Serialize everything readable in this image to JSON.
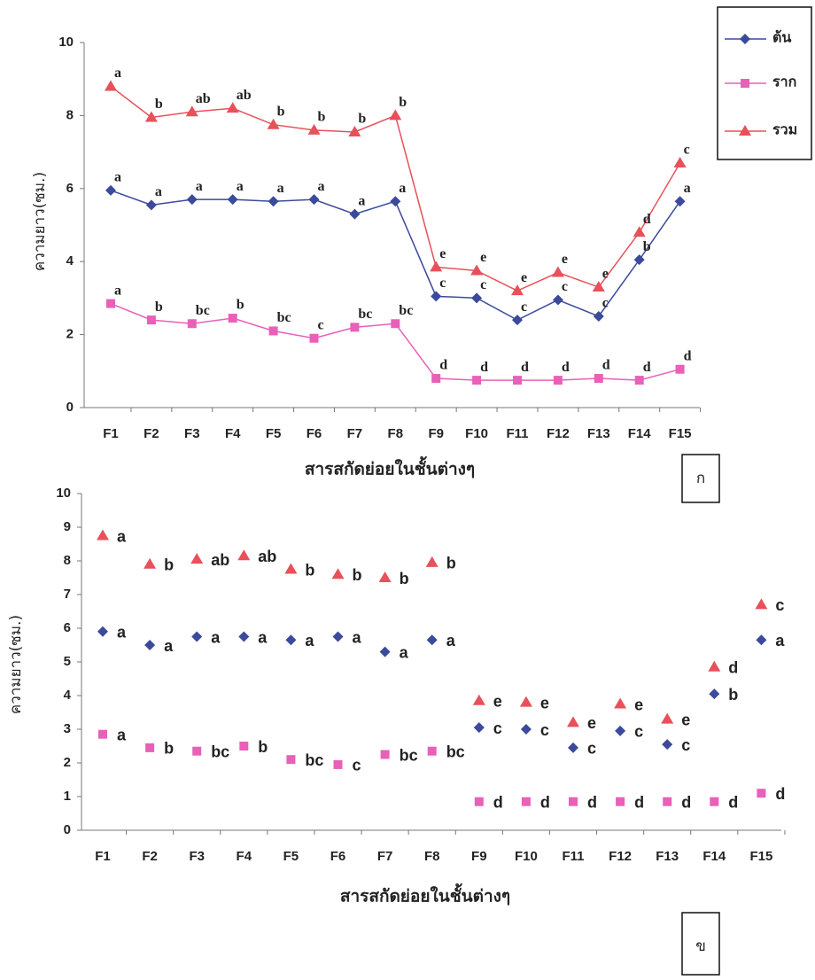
{
  "chart_data": [
    {
      "type": "line",
      "panel_label": "ก",
      "y_label": "ความยาว(ซม.)",
      "x_label": "สารสกัดย่อยในชั้นต่างๆ",
      "categories": [
        "F1",
        "F2",
        "F3",
        "F4",
        "F5",
        "F6",
        "F7",
        "F8",
        "F9",
        "F10",
        "F11",
        "F12",
        "F13",
        "F14",
        "F15"
      ],
      "ylim": [
        0,
        10
      ],
      "yticks": [
        0,
        2,
        4,
        6,
        8,
        10
      ],
      "legend": "top-right",
      "series": [
        {
          "name": "ต้น",
          "color": "#3b4a9a",
          "marker": "diamond",
          "values": [
            5.95,
            5.55,
            5.7,
            5.7,
            5.65,
            5.7,
            5.3,
            5.65,
            3.05,
            3.0,
            2.4,
            2.95,
            2.5,
            4.05,
            5.65
          ],
          "letters": [
            "a",
            "a",
            "a",
            "a",
            "a",
            "a",
            "a",
            "a",
            "c",
            "c",
            "c",
            "c",
            "c",
            "b",
            "a"
          ]
        },
        {
          "name": "ราก",
          "color": "#e860b8",
          "marker": "square",
          "values": [
            2.85,
            2.4,
            2.3,
            2.45,
            2.1,
            1.9,
            2.2,
            2.3,
            0.8,
            0.75,
            0.75,
            0.75,
            0.8,
            0.75,
            1.05
          ],
          "letters": [
            "a",
            "b",
            "bc",
            "b",
            "bc",
            "c",
            "bc",
            "bc",
            "d",
            "d",
            "d",
            "d",
            "d",
            "d",
            "d"
          ]
        },
        {
          "name": "รวม",
          "color": "#e8505a",
          "marker": "triangle",
          "values": [
            8.8,
            7.95,
            8.1,
            8.2,
            7.75,
            7.6,
            7.55,
            8.0,
            3.85,
            3.75,
            3.2,
            3.7,
            3.3,
            4.8,
            6.7
          ],
          "letters": [
            "a",
            "b",
            "ab",
            "ab",
            "b",
            "b",
            "b",
            "b",
            "e",
            "e",
            "e",
            "e",
            "e",
            "d",
            "c"
          ]
        }
      ]
    },
    {
      "type": "dot",
      "panel_label": "ข",
      "y_label": "ความยาว(ซม.)",
      "x_label": "สารสกัดย่อยในชั้นต่างๆ",
      "categories": [
        "F1",
        "F2",
        "F3",
        "F4",
        "F5",
        "F6",
        "F7",
        "F8",
        "F9",
        "F10",
        "F11",
        "F12",
        "F13",
        "F14",
        "F15"
      ],
      "ylim": [
        0,
        10
      ],
      "yticks": [
        0,
        1,
        2,
        3,
        4,
        5,
        6,
        7,
        8,
        9,
        10
      ],
      "series": [
        {
          "color": "#3b4a9a",
          "marker": "diamond",
          "values": [
            5.9,
            5.5,
            5.75,
            5.75,
            5.65,
            5.75,
            5.3,
            5.65,
            3.05,
            3.0,
            2.45,
            2.95,
            2.55,
            4.05,
            5.65
          ],
          "letters": [
            "a",
            "a",
            "a",
            "a",
            "a",
            "a",
            "a",
            "a",
            "c",
            "c",
            "c",
            "c",
            "c",
            "b",
            "a"
          ]
        },
        {
          "color": "#e860b8",
          "marker": "square",
          "values": [
            2.85,
            2.45,
            2.35,
            2.5,
            2.1,
            1.95,
            2.25,
            2.35,
            0.85,
            0.85,
            0.85,
            0.85,
            0.85,
            0.85,
            1.1
          ],
          "letters": [
            "a",
            "b",
            "bc",
            "b",
            "bc",
            "c",
            "bc",
            "bc",
            "d",
            "d",
            "d",
            "d",
            "d",
            "d",
            "d"
          ]
        },
        {
          "color": "#e8505a",
          "marker": "triangle",
          "values": [
            8.75,
            7.9,
            8.05,
            8.15,
            7.75,
            7.6,
            7.5,
            7.95,
            3.85,
            3.8,
            3.2,
            3.75,
            3.3,
            4.85,
            6.7
          ],
          "letters": [
            "a",
            "b",
            "ab",
            "ab",
            "b",
            "b",
            "b",
            "b",
            "e",
            "e",
            "e",
            "e",
            "e",
            "d",
            "c"
          ]
        }
      ]
    }
  ]
}
